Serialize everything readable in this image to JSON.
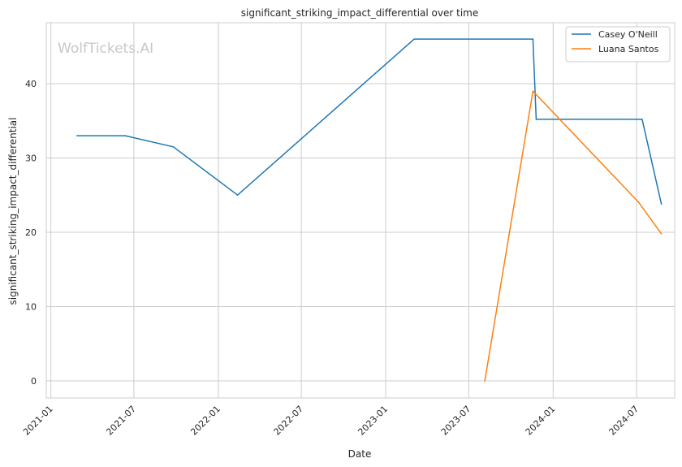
{
  "chart_data": {
    "type": "line",
    "title": "significant_striking_impact_differential over time",
    "xlabel": "Date",
    "ylabel": "significant_striking_impact_differential",
    "watermark": "WolfTickets.AI",
    "xlim": [
      "2020-12-22",
      "2024-09-22"
    ],
    "ylim": [
      -2.3,
      48.2
    ],
    "x_ticks": [
      "2021-01",
      "2021-07",
      "2022-01",
      "2022-07",
      "2023-01",
      "2023-07",
      "2024-01",
      "2024-07"
    ],
    "y_ticks": [
      0,
      10,
      20,
      30,
      40
    ],
    "grid": true,
    "legend_position": "top-right",
    "series": [
      {
        "name": "Casey O'Neill",
        "color": "#1f77b4",
        "points": [
          {
            "x": "2021-02-27",
            "y": 33.0
          },
          {
            "x": "2021-06-12",
            "y": 33.0
          },
          {
            "x": "2021-09-25",
            "y": 31.5
          },
          {
            "x": "2022-02-12",
            "y": 25.0
          },
          {
            "x": "2023-03-04",
            "y": 46.0
          },
          {
            "x": "2023-11-18",
            "y": 46.0
          },
          {
            "x": "2023-11-25",
            "y": 35.2
          },
          {
            "x": "2024-07-13",
            "y": 35.2
          },
          {
            "x": "2024-08-24",
            "y": 23.8
          }
        ]
      },
      {
        "name": "Luana Santos",
        "color": "#ff7f0e",
        "points": [
          {
            "x": "2023-08-05",
            "y": 0.0
          },
          {
            "x": "2023-11-18",
            "y": 39.0
          },
          {
            "x": "2024-07-06",
            "y": 24.0
          },
          {
            "x": "2024-08-24",
            "y": 19.8
          }
        ]
      }
    ]
  }
}
